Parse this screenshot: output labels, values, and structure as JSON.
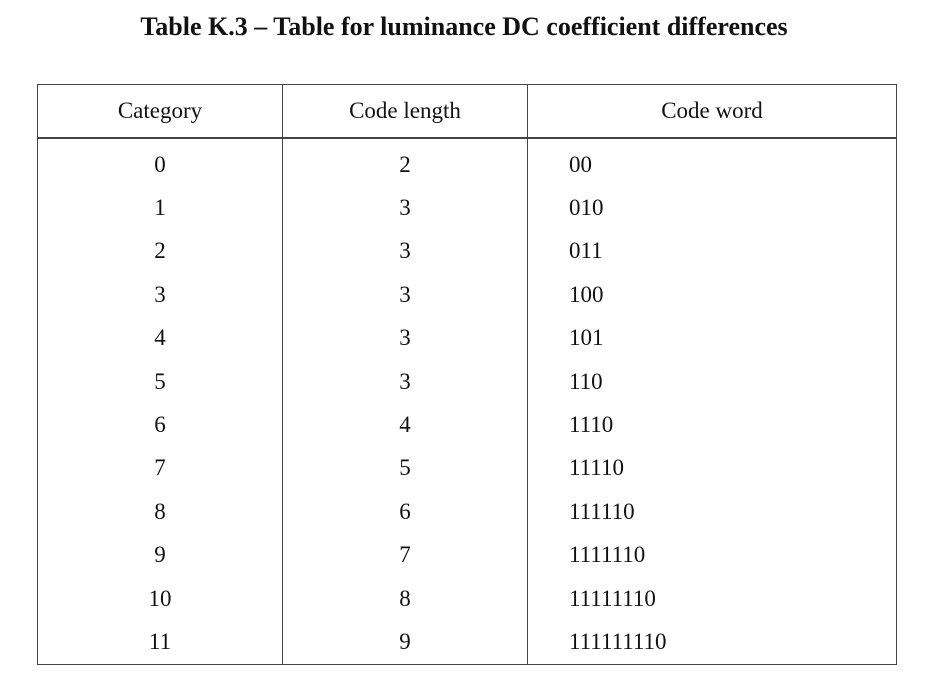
{
  "title": "Table K.3 – Table for luminance DC coefficient differences",
  "headers": [
    "Category",
    "Code length",
    "Code word"
  ],
  "rows": [
    {
      "category": "0",
      "length": "2",
      "word": "00"
    },
    {
      "category": "1",
      "length": "3",
      "word": "010"
    },
    {
      "category": "2",
      "length": "3",
      "word": "011"
    },
    {
      "category": "3",
      "length": "3",
      "word": "100"
    },
    {
      "category": "4",
      "length": "3",
      "word": "101"
    },
    {
      "category": "5",
      "length": "3",
      "word": "110"
    },
    {
      "category": "6",
      "length": "4",
      "word": "1110"
    },
    {
      "category": "7",
      "length": "5",
      "word": "11110"
    },
    {
      "category": "8",
      "length": "6",
      "word": "111110"
    },
    {
      "category": "9",
      "length": "7",
      "word": "1111110"
    },
    {
      "category": "10",
      "length": "8",
      "word": "11111110"
    },
    {
      "category": "11",
      "length": "9",
      "word": "111111110"
    }
  ]
}
